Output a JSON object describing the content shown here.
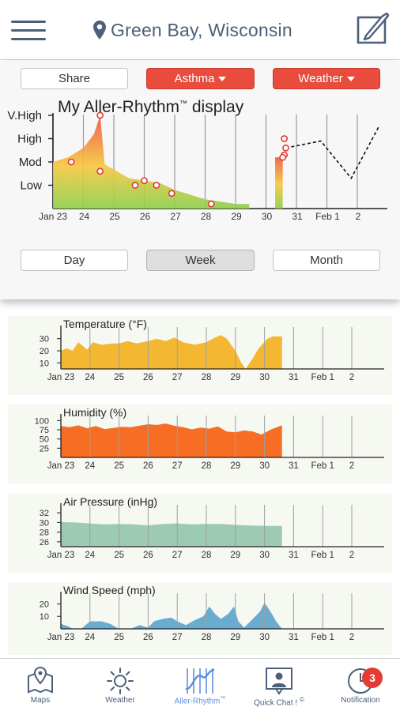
{
  "header": {
    "location": "Green Bay, Wisconsin",
    "menu_icon": "hamburger-menu-icon",
    "location_icon": "map-pin-icon",
    "edit_icon": "edit-note-icon"
  },
  "controls": {
    "share_label": "Share",
    "asthma_label": "Asthma",
    "weather_label": "Weather",
    "day_label": "Day",
    "week_label": "Week",
    "month_label": "Month",
    "selected_range": "Week"
  },
  "colors": {
    "accent_red": "#e94b3c",
    "brand_slate": "#4c6079",
    "temperature": "#f4b731",
    "humidity": "#f66d23",
    "pressure": "#9ccab2",
    "wind": "#6aabd0",
    "risk_high": "#f05040",
    "risk_low": "#8ccf4a"
  },
  "aller_rhythm": {
    "title": "My Aller-Rhythm",
    "trademark": "™",
    "title_suffix": " display",
    "y_levels": [
      "Low",
      "Mod",
      "High",
      "V.High"
    ],
    "x_labels": [
      "Jan 23",
      "24",
      "25",
      "26",
      "27",
      "28",
      "29",
      "30",
      "31",
      "Feb 1",
      "2"
    ],
    "observed_area": [
      [
        0.0,
        2.0
      ],
      [
        0.5,
        2.2
      ],
      [
        1.0,
        2.6
      ],
      [
        1.35,
        3.2
      ],
      [
        1.55,
        4.0
      ],
      [
        1.7,
        1.9
      ],
      [
        2.5,
        1.3
      ],
      [
        3.0,
        1.2
      ],
      [
        3.5,
        1.1
      ],
      [
        4.0,
        0.8
      ],
      [
        5.0,
        0.4
      ],
      [
        6.0,
        0.2
      ],
      [
        6.45,
        0.2
      ]
    ],
    "observed_area_2": [
      [
        7.3,
        2.2
      ],
      [
        7.55,
        2.2
      ],
      [
        7.55,
        2.3
      ]
    ],
    "points": [
      [
        0.6,
        2.0
      ],
      [
        1.55,
        4.0
      ],
      [
        1.55,
        1.6
      ],
      [
        2.7,
        1.0
      ],
      [
        3.0,
        1.2
      ],
      [
        3.4,
        1.0
      ],
      [
        3.9,
        0.65
      ],
      [
        5.2,
        0.2
      ],
      [
        7.6,
        3.0
      ],
      [
        7.65,
        2.6
      ],
      [
        7.6,
        2.3
      ],
      [
        7.55,
        2.2
      ]
    ],
    "forecast": [
      [
        7.65,
        2.6
      ],
      [
        8.8,
        2.9
      ],
      [
        9.8,
        1.3
      ],
      [
        10.7,
        3.5
      ]
    ]
  },
  "weather_charts": [
    {
      "title": "Temperature (°F)",
      "type": "area",
      "color": "#f4b731",
      "y_ticks": [
        10,
        20,
        30
      ],
      "ylim": [
        5,
        37
      ],
      "x_labels": [
        "Jan 23",
        "24",
        "25",
        "26",
        "27",
        "28",
        "29",
        "30",
        "31",
        "Feb 1",
        "2"
      ],
      "values": [
        [
          0,
          20
        ],
        [
          0.2,
          22
        ],
        [
          0.4,
          20
        ],
        [
          0.6,
          27
        ],
        [
          0.9,
          21
        ],
        [
          1.1,
          27
        ],
        [
          1.4,
          25
        ],
        [
          1.8,
          26
        ],
        [
          2.0,
          26
        ],
        [
          2.3,
          28
        ],
        [
          2.6,
          26
        ],
        [
          3.0,
          28
        ],
        [
          3.3,
          30
        ],
        [
          3.6,
          28
        ],
        [
          3.9,
          31
        ],
        [
          4.2,
          27
        ],
        [
          4.6,
          25
        ],
        [
          5.0,
          27
        ],
        [
          5.3,
          31
        ],
        [
          5.5,
          33
        ],
        [
          5.7,
          30
        ],
        [
          6.0,
          20
        ],
        [
          6.2,
          10
        ],
        [
          6.35,
          5
        ],
        [
          6.6,
          14
        ],
        [
          6.8,
          22
        ],
        [
          7.1,
          30
        ],
        [
          7.3,
          32
        ],
        [
          7.6,
          32
        ]
      ]
    },
    {
      "title": "Humidity (%)",
      "type": "area",
      "color": "#f66d23",
      "y_ticks": [
        25,
        50,
        75,
        100
      ],
      "ylim": [
        0,
        105
      ],
      "x_labels": [
        "Jan 23",
        "24",
        "25",
        "26",
        "27",
        "28",
        "29",
        "30",
        "31",
        "Feb 1",
        "2"
      ],
      "values": [
        [
          0,
          85
        ],
        [
          0.3,
          82
        ],
        [
          0.6,
          87
        ],
        [
          0.9,
          79
        ],
        [
          1.2,
          85
        ],
        [
          1.5,
          77
        ],
        [
          1.8,
          80
        ],
        [
          2.1,
          83
        ],
        [
          2.4,
          82
        ],
        [
          2.7,
          86
        ],
        [
          3.0,
          90
        ],
        [
          3.3,
          88
        ],
        [
          3.6,
          92
        ],
        [
          3.9,
          86
        ],
        [
          4.2,
          82
        ],
        [
          4.5,
          76
        ],
        [
          4.8,
          81
        ],
        [
          5.1,
          78
        ],
        [
          5.4,
          84
        ],
        [
          5.7,
          70
        ],
        [
          6.0,
          68
        ],
        [
          6.3,
          73
        ],
        [
          6.6,
          70
        ],
        [
          6.9,
          62
        ],
        [
          7.2,
          75
        ],
        [
          7.6,
          87
        ]
      ]
    },
    {
      "title": "Air Pressure (inHg)",
      "type": "area",
      "color": "#9ccab2",
      "y_ticks": [
        26,
        28,
        30,
        32
      ],
      "ylim": [
        25,
        33
      ],
      "x_labels": [
        "Jan 23",
        "24",
        "25",
        "26",
        "27",
        "28",
        "29",
        "30",
        "31",
        "Feb 1",
        "2"
      ],
      "values": [
        [
          0,
          30.1
        ],
        [
          0.5,
          30.0
        ],
        [
          1.0,
          29.8
        ],
        [
          1.5,
          29.6
        ],
        [
          2.0,
          29.7
        ],
        [
          2.5,
          29.6
        ],
        [
          3.0,
          29.4
        ],
        [
          3.5,
          29.7
        ],
        [
          4.0,
          29.8
        ],
        [
          4.5,
          29.6
        ],
        [
          5.0,
          29.7
        ],
        [
          5.5,
          29.7
        ],
        [
          6.0,
          29.5
        ],
        [
          6.5,
          29.4
        ],
        [
          7.0,
          29.3
        ],
        [
          7.6,
          29.3
        ]
      ]
    },
    {
      "title": "Wind Speed (mph)",
      "type": "area",
      "color": "#6aabd0",
      "y_ticks": [
        10,
        20
      ],
      "ylim": [
        0,
        26
      ],
      "x_labels": [
        "Jan 23",
        "24",
        "25",
        "26",
        "27",
        "28",
        "29",
        "30",
        "31",
        "Feb 1",
        "2"
      ],
      "values": [
        [
          0,
          4
        ],
        [
          0.25,
          2
        ],
        [
          0.4,
          0
        ],
        [
          0.7,
          0
        ],
        [
          1.0,
          6
        ],
        [
          1.4,
          6
        ],
        [
          1.7,
          4
        ],
        [
          2.0,
          0
        ],
        [
          2.4,
          0
        ],
        [
          2.7,
          3
        ],
        [
          3.0,
          1
        ],
        [
          3.2,
          6
        ],
        [
          3.5,
          8
        ],
        [
          3.8,
          9
        ],
        [
          4.0,
          6
        ],
        [
          4.3,
          3
        ],
        [
          4.6,
          7
        ],
        [
          4.9,
          10
        ],
        [
          5.1,
          18
        ],
        [
          5.3,
          12
        ],
        [
          5.5,
          8
        ],
        [
          5.75,
          12
        ],
        [
          5.95,
          18
        ],
        [
          6.1,
          6
        ],
        [
          6.3,
          1
        ],
        [
          6.6,
          8
        ],
        [
          6.85,
          14
        ],
        [
          7.0,
          21
        ],
        [
          7.2,
          14
        ],
        [
          7.4,
          6
        ],
        [
          7.6,
          0
        ]
      ]
    }
  ],
  "nav": {
    "items": [
      {
        "label": "Maps",
        "icon": "map-icon"
      },
      {
        "label": "Weather",
        "icon": "sun-icon"
      },
      {
        "label": "Aller-Rhythm",
        "icon": "aller-rhythm-icon"
      },
      {
        "label": "Quick Chat !",
        "icon": "quick-chat-icon"
      },
      {
        "label": "Notification",
        "icon": "notification-icon"
      }
    ],
    "trademark_mark": "™",
    "copyright_mark": "©",
    "notification_count": "3"
  }
}
